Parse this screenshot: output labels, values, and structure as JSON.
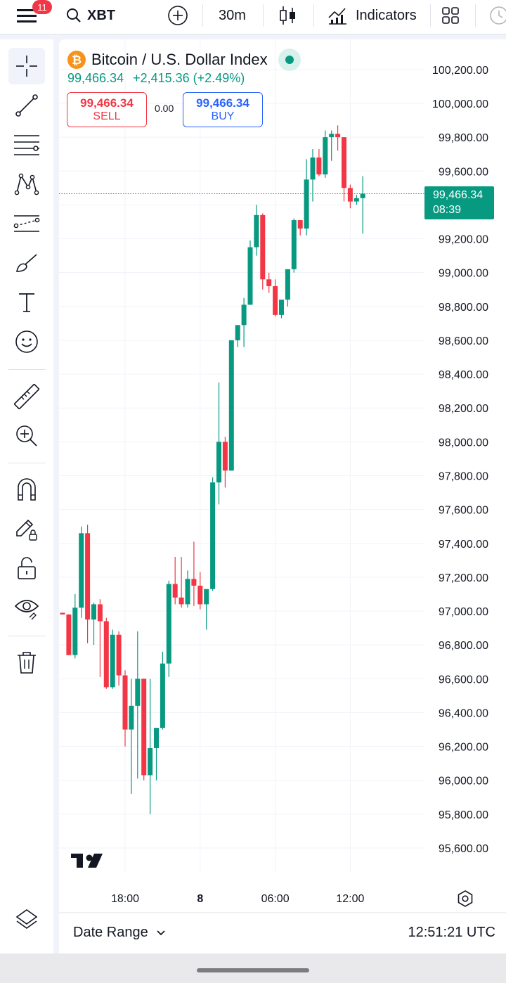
{
  "toolbar": {
    "notification_count": "11",
    "symbol": "XBT",
    "interval": "30m",
    "indicators_label": "Indicators"
  },
  "legend": {
    "title": "Bitcoin / U.S. Dollar Index",
    "last": "99,466.34",
    "change": "+2,415.36 (+2.49%)",
    "sell_price": "99,466.34",
    "sell_label": "SELL",
    "spread": "0.00",
    "buy_price": "99,466.34",
    "buy_label": "BUY"
  },
  "price_axis": {
    "current_price": "99,466.34",
    "countdown": "08:39"
  },
  "bottom": {
    "date_range_label": "Date Range",
    "clock": "12:51:21 UTC"
  },
  "colors": {
    "up": "#089981",
    "down": "#f23645",
    "buy": "#2962ff"
  },
  "chart_data": {
    "type": "candlestick",
    "y_ticks": [
      95600,
      95800,
      96000,
      96200,
      96400,
      96600,
      96800,
      97000,
      97200,
      97400,
      97600,
      97800,
      98000,
      98200,
      98400,
      98600,
      98800,
      99000,
      99200,
      99400,
      99600,
      99800,
      100000,
      100200
    ],
    "y_tick_labels": [
      "95,600.00",
      "95,800.00",
      "96,000.00",
      "96,200.00",
      "96,400.00",
      "96,600.00",
      "96,800.00",
      "97,000.00",
      "97,200.00",
      "97,400.00",
      "97,600.00",
      "97,800.00",
      "98,000.00",
      "98,200.00",
      "98,400.00",
      "98,600.00",
      "98,800.00",
      "99,000.00",
      "99,200.00",
      "99,400.00",
      "99,600.00",
      "99,800.00",
      "100,000.00",
      "100,200.00"
    ],
    "x_labels": [
      {
        "label": "18:00",
        "index": 10,
        "bold": false
      },
      {
        "label": "8",
        "index": 22,
        "bold": true
      },
      {
        "label": "06:00",
        "index": 34,
        "bold": false
      },
      {
        "label": "12:00",
        "index": 46,
        "bold": false
      }
    ],
    "last_value": 99466.34,
    "candles": [
      {
        "o": 96990,
        "h": 96990,
        "l": 96990,
        "c": 96980
      },
      {
        "o": 96980,
        "h": 96980,
        "l": 96740,
        "c": 96740
      },
      {
        "o": 96740,
        "h": 97100,
        "l": 96720,
        "c": 97020
      },
      {
        "o": 97020,
        "h": 97500,
        "l": 96960,
        "c": 97460
      },
      {
        "o": 97460,
        "h": 97510,
        "l": 96810,
        "c": 96950
      },
      {
        "o": 96950,
        "h": 97050,
        "l": 96800,
        "c": 97040
      },
      {
        "o": 97040,
        "h": 97070,
        "l": 96610,
        "c": 96940
      },
      {
        "o": 96940,
        "h": 96960,
        "l": 96540,
        "c": 96550
      },
      {
        "o": 96550,
        "h": 96890,
        "l": 96540,
        "c": 96860
      },
      {
        "o": 96860,
        "h": 96880,
        "l": 96560,
        "c": 96620
      },
      {
        "o": 96620,
        "h": 96650,
        "l": 96200,
        "c": 96300
      },
      {
        "o": 96300,
        "h": 96600,
        "l": 95920,
        "c": 96440
      },
      {
        "o": 96440,
        "h": 96880,
        "l": 96010,
        "c": 96600
      },
      {
        "o": 96600,
        "h": 96600,
        "l": 96000,
        "c": 96030
      },
      {
        "o": 96030,
        "h": 96600,
        "l": 95800,
        "c": 96190
      },
      {
        "o": 96190,
        "h": 96300,
        "l": 96000,
        "c": 96310
      },
      {
        "o": 96310,
        "h": 96760,
        "l": 96300,
        "c": 96690
      },
      {
        "o": 96690,
        "h": 97180,
        "l": 96610,
        "c": 97160
      },
      {
        "o": 97160,
        "h": 97320,
        "l": 97040,
        "c": 97080
      },
      {
        "o": 97080,
        "h": 97320,
        "l": 97020,
        "c": 97040
      },
      {
        "o": 97040,
        "h": 97240,
        "l": 97020,
        "c": 97190
      },
      {
        "o": 97190,
        "h": 97410,
        "l": 97030,
        "c": 97150
      },
      {
        "o": 97150,
        "h": 97230,
        "l": 97010,
        "c": 97040
      },
      {
        "o": 97040,
        "h": 97110,
        "l": 96890,
        "c": 97130
      },
      {
        "o": 97130,
        "h": 97790,
        "l": 97120,
        "c": 97760
      },
      {
        "o": 97760,
        "h": 98350,
        "l": 97630,
        "c": 98000
      },
      {
        "o": 98000,
        "h": 98030,
        "l": 97730,
        "c": 97830
      },
      {
        "o": 97830,
        "h": 98600,
        "l": 97830,
        "c": 98600
      },
      {
        "o": 98600,
        "h": 98690,
        "l": 98560,
        "c": 98690
      },
      {
        "o": 98690,
        "h": 98850,
        "l": 98560,
        "c": 98810
      },
      {
        "o": 98810,
        "h": 99190,
        "l": 98810,
        "c": 99150
      },
      {
        "o": 99150,
        "h": 99400,
        "l": 99100,
        "c": 99340
      },
      {
        "o": 99340,
        "h": 99350,
        "l": 98900,
        "c": 98960
      },
      {
        "o": 98960,
        "h": 99000,
        "l": 98880,
        "c": 98920
      },
      {
        "o": 98920,
        "h": 98960,
        "l": 98740,
        "c": 98750
      },
      {
        "o": 98750,
        "h": 98830,
        "l": 98730,
        "c": 98840
      },
      {
        "o": 98840,
        "h": 99010,
        "l": 98800,
        "c": 99020
      },
      {
        "o": 99020,
        "h": 99320,
        "l": 99000,
        "c": 99310
      },
      {
        "o": 99310,
        "h": 99310,
        "l": 99220,
        "c": 99260
      },
      {
        "o": 99260,
        "h": 99670,
        "l": 99220,
        "c": 99550
      },
      {
        "o": 99550,
        "h": 99730,
        "l": 99420,
        "c": 99680
      },
      {
        "o": 99680,
        "h": 99730,
        "l": 99570,
        "c": 99580
      },
      {
        "o": 99580,
        "h": 99840,
        "l": 99560,
        "c": 99800
      },
      {
        "o": 99800,
        "h": 99840,
        "l": 99660,
        "c": 99820
      },
      {
        "o": 99820,
        "h": 99870,
        "l": 99720,
        "c": 99800
      },
      {
        "o": 99800,
        "h": 99800,
        "l": 99420,
        "c": 99500
      },
      {
        "o": 99500,
        "h": 99520,
        "l": 99380,
        "c": 99420
      },
      {
        "o": 99420,
        "h": 99460,
        "l": 99400,
        "c": 99440
      },
      {
        "o": 99440,
        "h": 99570,
        "l": 99230,
        "c": 99466
      }
    ]
  }
}
